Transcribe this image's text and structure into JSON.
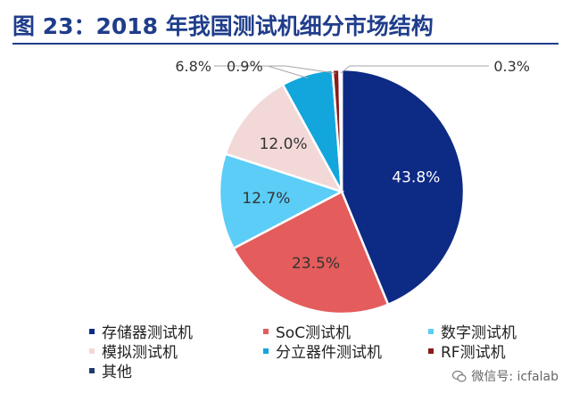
{
  "title": "图 23：2018 年我国测试机细分市场结构",
  "watermark": "微信号: icfalab",
  "chart_data": {
    "type": "pie",
    "title": "",
    "slices": [
      {
        "name": "存储器测试机",
        "value": 43.8,
        "label": "43.8%",
        "color": "#0d2a84"
      },
      {
        "name": "SoC测试机",
        "value": 23.5,
        "label": "23.5%",
        "color": "#e45c5c"
      },
      {
        "name": "数字测试机",
        "value": 12.7,
        "label": "12.7%",
        "color": "#5bcdf7"
      },
      {
        "name": "模拟测试机",
        "value": 12.0,
        "label": "12.0%",
        "color": "#f3d8d8"
      },
      {
        "name": "分立器件测试机",
        "value": 6.8,
        "label": "6.8%",
        "color": "#12a6dc"
      },
      {
        "name": "RF测试机",
        "value": 0.9,
        "label": "0.9%",
        "color": "#8b1a1a"
      },
      {
        "name": "其他",
        "value": 0.3,
        "label": "0.3%",
        "color": "#1f3a6e"
      }
    ],
    "legend_placement": "bottom"
  }
}
